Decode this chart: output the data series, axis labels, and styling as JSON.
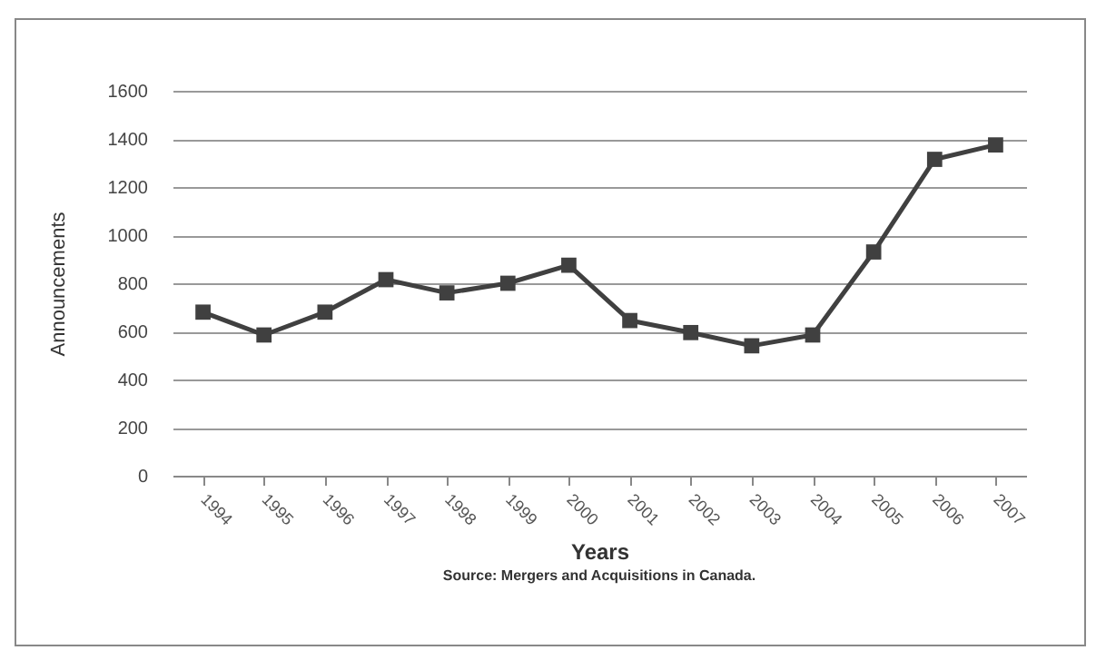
{
  "chart_data": {
    "type": "line",
    "xlabel": "Years",
    "ylabel": "Announcements",
    "annotations": [
      "Source:  Mergers and Acquisitions in Canada."
    ],
    "categories": [
      "1994",
      "1995",
      "1996",
      "1997",
      "1998",
      "1999",
      "2000",
      "2001",
      "2002",
      "2003",
      "2004",
      "2005",
      "2006",
      "2007"
    ],
    "series": [
      {
        "color": "#404040",
        "values": [
          680,
          585,
          680,
          815,
          760,
          800,
          875,
          645,
          595,
          540,
          585,
          930,
          1315,
          1375
        ]
      }
    ],
    "ylim": [
      0,
      1600
    ],
    "yticks": [
      0,
      200,
      400,
      600,
      800,
      1000,
      1200,
      1400,
      1600
    ],
    "grid": "y",
    "marker": "square",
    "line_style": "solid"
  }
}
